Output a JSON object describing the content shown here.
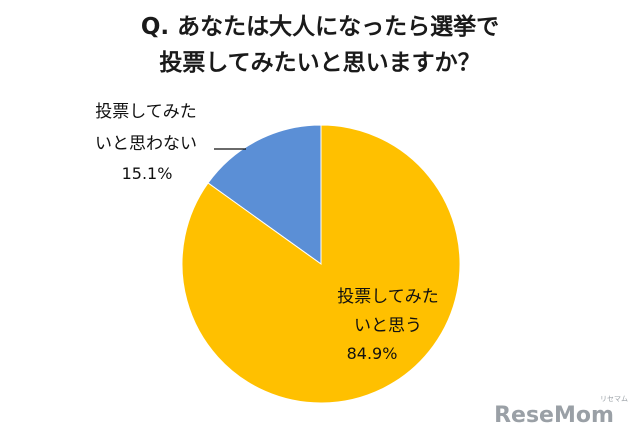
{
  "chart_data": {
    "type": "pie",
    "title": {
      "line1": "Q. あなたは大人になったら選挙で",
      "line2": "投票してみたいと思いますか？"
    },
    "slices": [
      {
        "label_line1": "投票してみた",
        "label_line2": "いと思わない",
        "value": 15.1,
        "display": "15.1%",
        "color": "#5b8fd6"
      },
      {
        "label_line1": "投票してみた",
        "label_line2": "い",
        "label_line3": "と思う",
        "value": 84.9,
        "display": "84.9%",
        "color": "#ffc000"
      }
    ],
    "start_angle_deg": 0,
    "direction": "counterclockwise",
    "legend": "none"
  },
  "watermark": {
    "logo": "ReseMom",
    "sub": "リセマム"
  }
}
